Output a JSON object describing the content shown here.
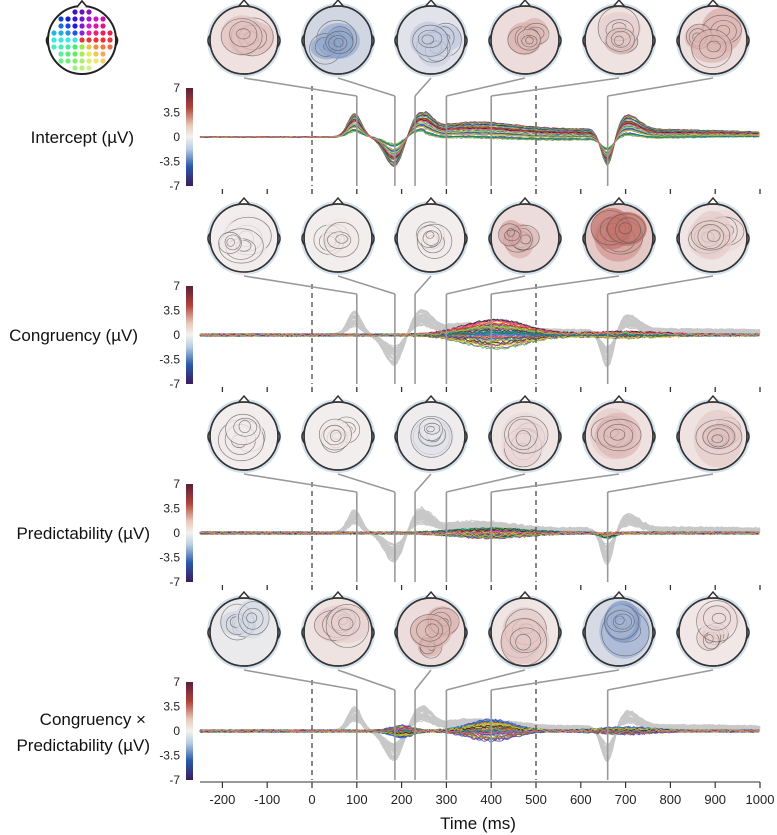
{
  "chart_data": {
    "type": "line",
    "title": "",
    "xlabel": "Time (ms)",
    "xlim": [
      -250,
      1000
    ],
    "x_ticks": [
      -200,
      -100,
      0,
      100,
      200,
      300,
      400,
      500,
      600,
      700,
      800,
      900,
      1000
    ],
    "event_lines_ms": [
      0,
      500
    ],
    "topomap_times_ms": [
      100,
      185,
      230,
      300,
      400,
      660
    ],
    "colorbar_ticks": [
      "7",
      "3.5",
      "0",
      "-3.5",
      "-7"
    ],
    "ylim": [
      -7,
      7
    ],
    "sensor_layout_icon": "electrode-layout-icon",
    "colors": {
      "grey_traces": "#c8c8c8",
      "event_line": "#555555",
      "topo_lines": "#9a9a9a",
      "positive": "#b0443a",
      "negative": "#2b5aa8"
    },
    "series": [
      {
        "name": "Intercept (µV)",
        "features": [
          [
            90,
            2.6
          ],
          [
            125,
            0.8
          ],
          [
            185,
            -3.4
          ],
          [
            240,
            2.2
          ],
          [
            300,
            1.8
          ],
          [
            420,
            1.0
          ],
          [
            620,
            0.6
          ],
          [
            660,
            -4.2
          ],
          [
            700,
            1.6
          ],
          [
            1000,
            0.5
          ]
        ],
        "topomaps": [
          0.35,
          -0.7,
          -0.35,
          0.45,
          0.3,
          0.4
        ]
      },
      {
        "name": "Congruency (µV)",
        "features": [
          [
            300,
            0.5
          ],
          [
            400,
            2.2
          ],
          [
            480,
            1.6
          ],
          [
            560,
            0.6
          ],
          [
            1000,
            0.2
          ]
        ],
        "topomaps": [
          0.05,
          0.05,
          0.05,
          0.45,
          0.9,
          0.25
        ]
      },
      {
        "name": "Predictability (µV)",
        "features": [
          [
            300,
            0.3
          ],
          [
            400,
            0.6
          ],
          [
            660,
            -0.6
          ],
          [
            1000,
            0.1
          ]
        ],
        "topomaps": [
          0.05,
          0.05,
          -0.1,
          0.25,
          0.35,
          0.3
        ]
      },
      {
        "name_line1": "Congruency ×",
        "name_line2": "Predictability (µV)",
        "features": [
          [
            200,
            -0.8
          ],
          [
            300,
            0.7
          ],
          [
            400,
            1.5
          ],
          [
            480,
            0.8
          ],
          [
            1000,
            0.2
          ]
        ],
        "topomaps": [
          -0.2,
          0.3,
          0.45,
          0.25,
          -0.6,
          0.2
        ]
      }
    ]
  }
}
